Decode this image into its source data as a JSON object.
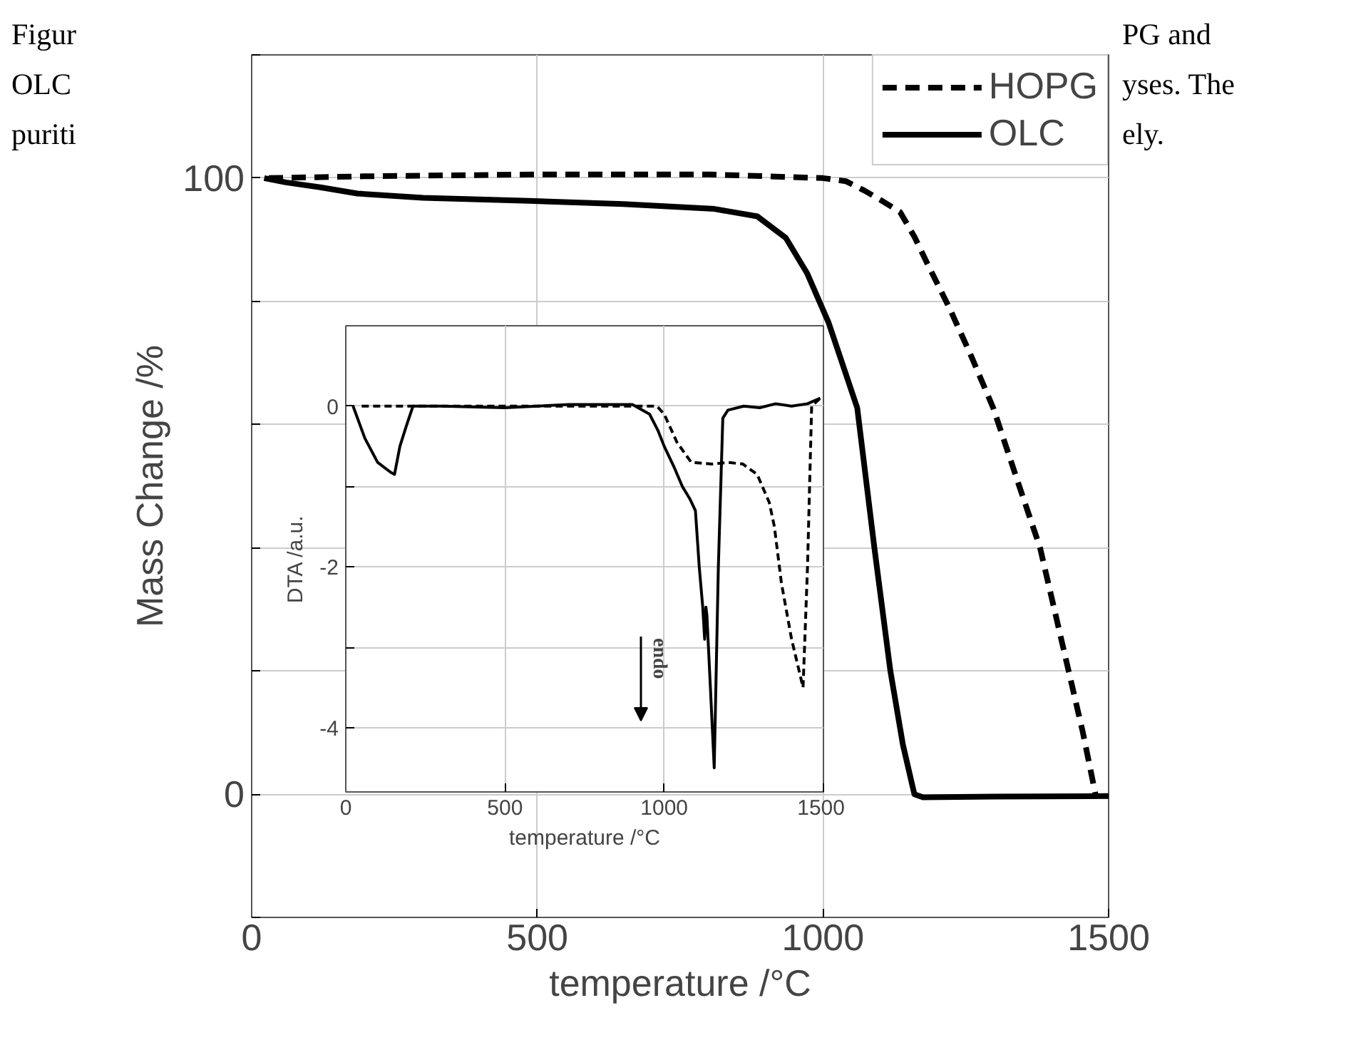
{
  "chart_data": [
    {
      "type": "line",
      "xlabel": "temperature /°C",
      "ylabel": "Mass Change /%",
      "annotations": [
        "Figur",
        "PG and",
        "OLC",
        "yses. The",
        "puriti",
        "ely."
      ],
      "xlim": [
        0,
        1500
      ],
      "xticks": [
        0,
        500,
        1000,
        1500
      ],
      "ylim": [
        -20,
        120
      ],
      "yticks": [
        {
          "value": -20,
          "label": null
        },
        0,
        {
          "value": 20,
          "label": null
        },
        {
          "value": 40,
          "label": null
        },
        {
          "value": 60,
          "label": null
        },
        {
          "value": 80,
          "label": null
        },
        100,
        {
          "value": 120,
          "label": null
        }
      ],
      "grid": true,
      "legend": "top right",
      "series": [
        {
          "name": "HOPG",
          "color": "#000000",
          "line_style": "dashed",
          "x": [
            30,
            200,
            500,
            800,
            1000,
            1040,
            1072,
            1100,
            1135,
            1160,
            1185,
            1222,
            1260,
            1298,
            1340,
            1380,
            1405,
            1430,
            1455,
            1477
          ],
          "values": [
            100,
            100.3,
            100.6,
            100.6,
            100,
            99.5,
            98,
            96.5,
            94.5,
            90.5,
            85.7,
            78.8,
            71,
            62.7,
            51,
            40,
            30,
            20,
            10,
            0
          ]
        },
        {
          "name": "OLC",
          "color": "#000000",
          "line_style": "solid",
          "x": [
            22,
            60,
            120,
            185,
            300,
            485,
            650,
            810,
            885,
            935,
            972,
            1010,
            1060,
            1090,
            1118,
            1140,
            1160,
            1175,
            1300,
            1500
          ],
          "values": [
            100,
            99.3,
            98.5,
            97.5,
            96.8,
            96.3,
            95.8,
            95,
            93.8,
            90.3,
            84.6,
            76.5,
            62.7,
            40,
            20,
            8,
            0,
            -0.5,
            -0.4,
            -0.3
          ]
        }
      ]
    },
    {
      "type": "line",
      "xlabel": "temperature /°C",
      "ylabel": "DTA /a.u.",
      "annotations": [
        "endo"
      ],
      "xlim": [
        0,
        1500
      ],
      "xticks": [
        0,
        500,
        1000,
        1500
      ],
      "ylim": [
        -4.8,
        1
      ],
      "yticks": [
        -4,
        {
          "value": -3,
          "label": null
        },
        -2,
        {
          "value": -1,
          "label": null
        },
        0
      ],
      "grid": true,
      "series": [
        {
          "color": "#000000",
          "line_style": "dashed",
          "x": [
            50,
            200,
            400,
            600,
            800,
            977,
            1000,
            1040,
            1085,
            1150,
            1200,
            1247,
            1292,
            1330,
            1346,
            1368,
            1400,
            1436,
            1450,
            1463,
            1490
          ],
          "values": [
            0,
            0,
            0,
            0,
            0,
            0,
            -0.1,
            -0.45,
            -0.7,
            -0.72,
            -0.7,
            -0.72,
            -0.85,
            -1.2,
            -1.5,
            -2.2,
            -2.9,
            -3.5,
            -2.0,
            0,
            0.1
          ]
        },
        {
          "color": "#000000",
          "line_style": "solid",
          "x": [
            23,
            60,
            100,
            140,
            153,
            170,
            190,
            211,
            300,
            500,
            700,
            900,
            954,
            980,
            1000,
            1030,
            1057,
            1080,
            1098,
            1110,
            1121,
            1127,
            1131,
            1134,
            1145,
            1157,
            1170,
            1184,
            1200,
            1250,
            1300,
            1350,
            1400,
            1450,
            1490
          ],
          "values": [
            0,
            -0.4,
            -0.7,
            -0.82,
            -0.85,
            -0.5,
            -0.25,
            0,
            0,
            -0.02,
            0.02,
            0.02,
            -0.1,
            -0.3,
            -0.5,
            -0.75,
            -1.0,
            -1.15,
            -1.3,
            -2.0,
            -2.5,
            -2.9,
            -2.5,
            -2.6,
            -3.5,
            -4.5,
            -2.0,
            -0.15,
            -0.05,
            0,
            -0.02,
            0.03,
            0.0,
            0.03,
            0.1
          ]
        }
      ]
    }
  ]
}
